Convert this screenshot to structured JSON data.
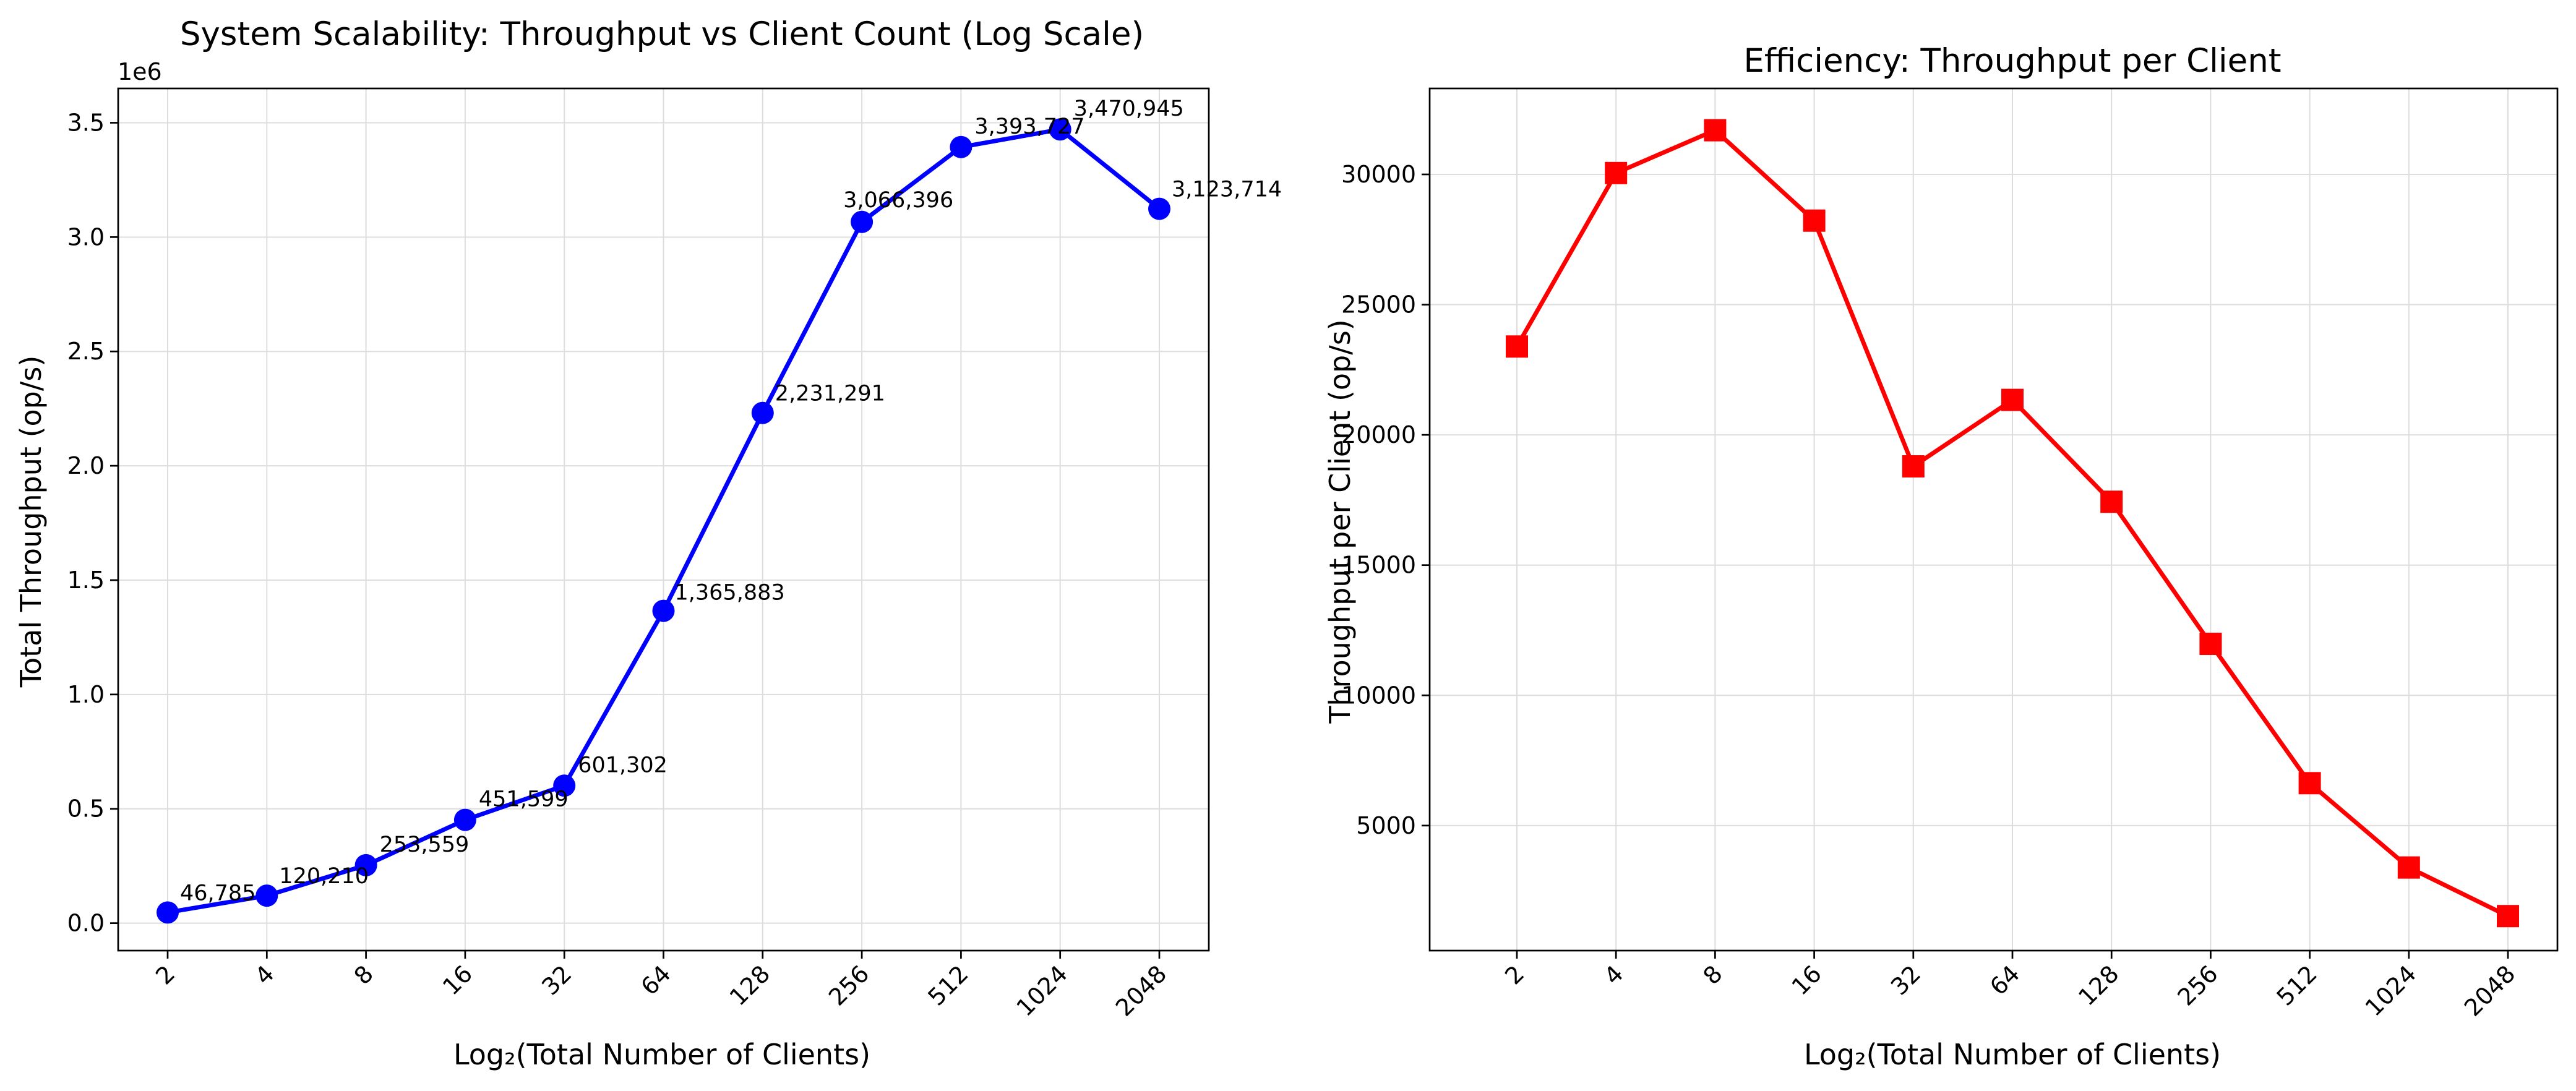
{
  "chart_data": [
    {
      "type": "line",
      "title": "System Scalability: Throughput vs Client Count (Log Scale)",
      "xlabel": "Log₂(Total Number of Clients)",
      "ylabel": "Total Throughput (op/s)",
      "y_offset_label": "1e6",
      "x_scale": "log2",
      "categories": [
        "2",
        "4",
        "8",
        "16",
        "32",
        "64",
        "128",
        "256",
        "512",
        "1024",
        "2048"
      ],
      "x": [
        2,
        4,
        8,
        16,
        32,
        64,
        128,
        256,
        512,
        1024,
        2048
      ],
      "ylim": [
        -0.12,
        3.65
      ],
      "yticks": [
        0.0,
        0.5,
        1.0,
        1.5,
        2.0,
        2.5,
        3.0,
        3.5
      ],
      "ytick_labels": [
        "0.0",
        "0.5",
        "1.0",
        "1.5",
        "2.0",
        "2.5",
        "3.0",
        "3.5"
      ],
      "series": [
        {
          "values": [
            46785,
            120210,
            253559,
            451599,
            601302,
            1365883,
            2231291,
            3066396,
            3393727,
            3470945,
            3123714
          ],
          "labels": [
            "46,785",
            "120,210",
            "253,559",
            "451,599",
            "601,302",
            "1,365,883",
            "2,231,291",
            "3,066,396",
            "3,393,727",
            "3,470,945",
            "3,123,714"
          ],
          "color": "#0000ff",
          "marker": "circle"
        }
      ],
      "grid": true,
      "tick_rotation": 45
    },
    {
      "type": "line",
      "title": "Efficiency: Throughput per Client",
      "xlabel": "Log₂(Total Number of Clients)",
      "ylabel": "Throughput per Client (op/s)",
      "x_scale": "log2",
      "categories": [
        "2",
        "4",
        "8",
        "16",
        "32",
        "64",
        "128",
        "256",
        "512",
        "1024",
        "2048"
      ],
      "x": [
        2,
        4,
        8,
        16,
        32,
        64,
        128,
        256,
        512,
        1024,
        2048
      ],
      "ylim": [
        200,
        33300
      ],
      "yticks": [
        5000,
        10000,
        15000,
        20000,
        25000,
        30000
      ],
      "ytick_labels": [
        "5000",
        "10000",
        "15000",
        "20000",
        "25000",
        "30000"
      ],
      "series": [
        {
          "values": [
            23392,
            30052,
            31695,
            28225,
            18791,
            21342,
            17432,
            11978,
            6628,
            3390,
            1525
          ],
          "color": "#ff0000",
          "marker": "square"
        }
      ],
      "grid": true,
      "tick_rotation": 45
    }
  ]
}
